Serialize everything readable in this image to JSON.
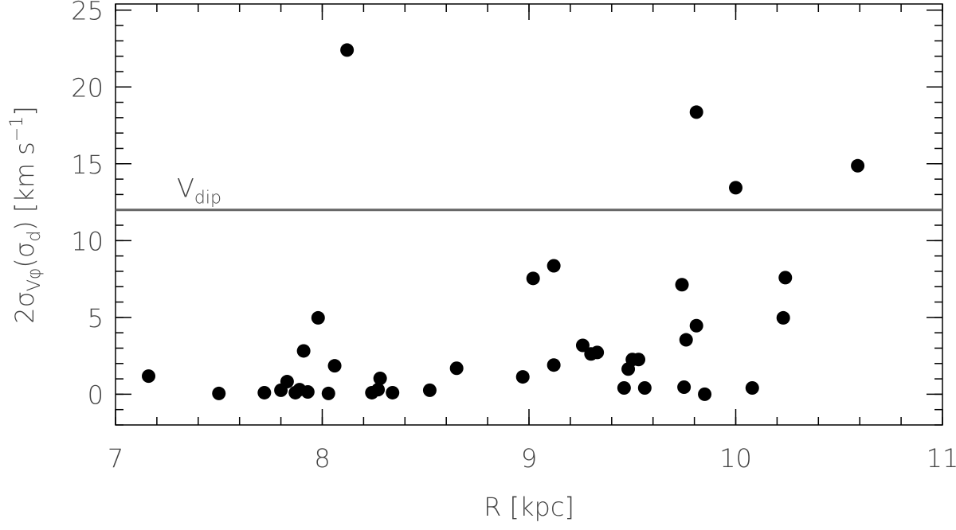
{
  "chart_data": {
    "type": "scatter",
    "xlabel": "R  [kpc]",
    "ylabel": [
      {
        "text": "2σ"
      },
      {
        "text": "Vφ",
        "sub": true
      },
      {
        "text": "(σ"
      },
      {
        "text": "d",
        "sub": true
      },
      {
        "text": ")  [km s"
      },
      {
        "text": "−1",
        "sup": true
      },
      {
        "text": "]"
      }
    ],
    "x": [
      7.16,
      7.5,
      7.72,
      7.8,
      7.83,
      7.87,
      7.89,
      7.93,
      7.91,
      7.98,
      8.03,
      8.06,
      8.12,
      8.24,
      8.27,
      8.28,
      8.34,
      8.52,
      8.65,
      8.97,
      9.02,
      9.12,
      9.12,
      9.26,
      9.3,
      9.33,
      9.46,
      9.48,
      9.5,
      9.53,
      9.56,
      9.74,
      9.75,
      9.76,
      9.81,
      9.81,
      9.85,
      10.0,
      10.08,
      10.23,
      10.24,
      10.59
    ],
    "values": [
      1.18,
      0.05,
      0.1,
      0.26,
      0.82,
      0.1,
      0.3,
      0.15,
      2.82,
      4.97,
      0.05,
      1.85,
      22.4,
      0.1,
      0.3,
      1.03,
      0.1,
      0.26,
      1.69,
      1.13,
      7.54,
      8.36,
      1.9,
      3.18,
      2.62,
      2.72,
      0.41,
      1.64,
      2.26,
      2.26,
      0.41,
      7.13,
      0.46,
      3.54,
      18.36,
      4.46,
      0.0,
      13.44,
      0.41,
      4.97,
      7.59,
      14.87
    ],
    "color": "#000000",
    "xlim": [
      7,
      11
    ],
    "xticks": [
      7,
      8,
      9,
      10,
      11
    ],
    "xminor": 0.2,
    "ylim": [
      -2,
      25.4
    ],
    "yticks": [
      0,
      5,
      10,
      15,
      20,
      25
    ],
    "yminor": 1,
    "reference_line": {
      "value": 12,
      "color": "#666666",
      "label": "V",
      "label_sub": "dip"
    }
  }
}
